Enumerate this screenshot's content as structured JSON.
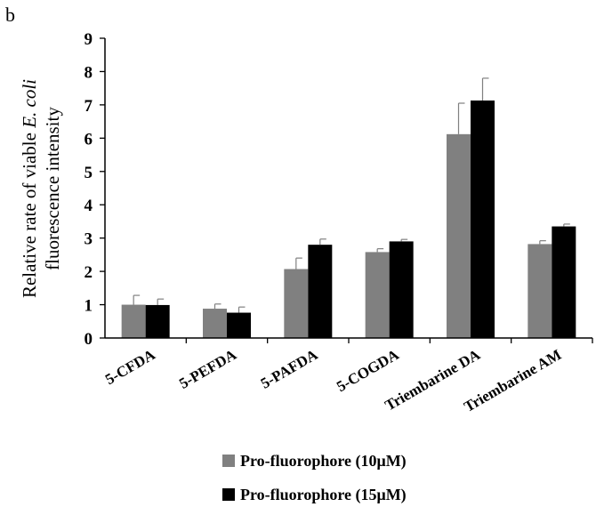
{
  "panel_label": "b",
  "chart_data": {
    "type": "bar",
    "title": "",
    "ylabel_line1_prefix": "Relative rate of viable ",
    "ylabel_line1_italic": "E. coli",
    "ylabel_line2": "fluorescence intensity",
    "xlabel": "",
    "ylim": [
      0,
      9
    ],
    "yticks": [
      "0",
      "1",
      "2",
      "3",
      "4",
      "5",
      "6",
      "7",
      "8",
      "9"
    ],
    "grid": false,
    "legend_position": "bottom",
    "categories": [
      "5-CFDA",
      "5-PEFDA",
      "5-PAFDA",
      "5-COGDA",
      "Triembarine DA",
      "Triembarine AM"
    ],
    "series": [
      {
        "name": "Pro-fluorophore (10μM)",
        "color": "#808080",
        "values": [
          1.0,
          0.88,
          2.07,
          2.58,
          6.12,
          2.82
        ],
        "error": [
          0.28,
          0.14,
          0.33,
          0.1,
          0.93,
          0.1
        ]
      },
      {
        "name": "Pro-fluorophore (15μM)",
        "color": "#000000",
        "values": [
          0.99,
          0.76,
          2.8,
          2.9,
          7.13,
          3.35
        ],
        "error": [
          0.18,
          0.17,
          0.17,
          0.06,
          0.67,
          0.07
        ]
      }
    ]
  }
}
